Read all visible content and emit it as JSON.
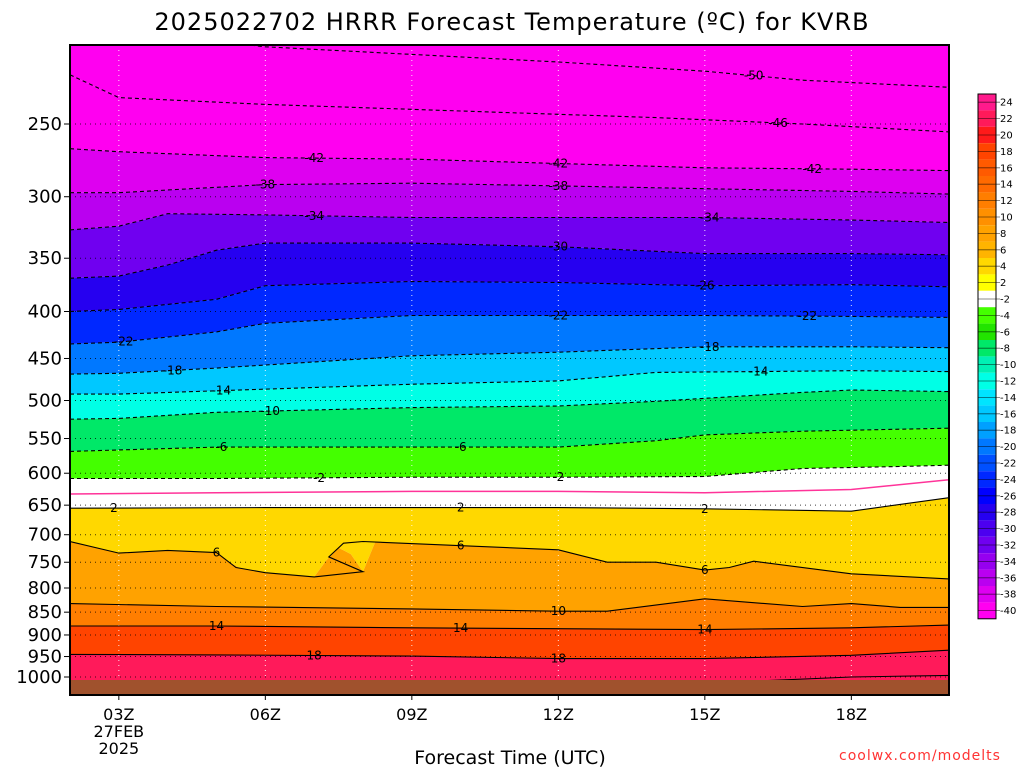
{
  "chart_data": {
    "type": "heatmap",
    "title": "2025022702 HRRR Forecast Temperature (ºC) for KVRB",
    "xlabel": "Forecast Time (UTC)",
    "ylabel": "",
    "credit": "coolwx.com/modelts",
    "x_ticks": [
      {
        "label": "03Z",
        "sub1": "27FEB",
        "sub2": "2025"
      },
      {
        "label": "06Z",
        "sub1": "",
        "sub2": ""
      },
      {
        "label": "09Z",
        "sub1": "",
        "sub2": ""
      },
      {
        "label": "12Z",
        "sub1": "",
        "sub2": ""
      },
      {
        "label": "15Z",
        "sub1": "",
        "sub2": ""
      },
      {
        "label": "18Z",
        "sub1": "",
        "sub2": ""
      }
    ],
    "x_hours": [
      3,
      6,
      9,
      12,
      15,
      18
    ],
    "xlim": [
      2,
      20
    ],
    "y_ticks": [
      250,
      300,
      350,
      400,
      450,
      500,
      550,
      600,
      650,
      700,
      750,
      800,
      850,
      900,
      950,
      1000
    ],
    "ylim": [
      1030,
      200
    ],
    "colorbar": {
      "labels": [
        "24",
        "22",
        "20",
        "18",
        "16",
        "14",
        "12",
        "10",
        "8",
        "6",
        "4",
        "2",
        "-2",
        "-4",
        "-6",
        "-8",
        "-10",
        "-12",
        "-14",
        "-16",
        "-18",
        "-20",
        "-22",
        "-24",
        "-26",
        "-28",
        "-30",
        "-32",
        "-34",
        "-36",
        "-38",
        "-40"
      ],
      "colors": [
        "#ff1a8c",
        "#ff1a5a",
        "#ff1a1a",
        "#ff4400",
        "#ff5a00",
        "#ff6a00",
        "#ff7e00",
        "#ff9000",
        "#ffa200",
        "#ffb400",
        "#ffd800",
        "#ffff00",
        "#ffffff",
        "#44ff00",
        "#22e400",
        "#00e868",
        "#00f0b4",
        "#00ffe6",
        "#00e4ff",
        "#00c8ff",
        "#00a0ff",
        "#0078ff",
        "#0050ff",
        "#0028ff",
        "#0000ff",
        "#2600f0",
        "#4c00f0",
        "#7000f0",
        "#9600f0",
        "#ba00f0",
        "#de00f0",
        "#ff00f0"
      ]
    },
    "contours": [
      {
        "label": "-50",
        "values": [
          [
            2,
            195
          ],
          [
            6,
            206
          ],
          [
            12,
            214
          ],
          [
            15,
            219
          ],
          [
            17,
            224
          ],
          [
            20,
            228
          ]
        ],
        "labels_at": [
          16
        ]
      },
      {
        "label": "-46",
        "values": [
          [
            2,
            221
          ],
          [
            3,
            234
          ],
          [
            6,
            238
          ],
          [
            10,
            242
          ],
          [
            14,
            246
          ],
          [
            17,
            250
          ],
          [
            20,
            255
          ]
        ],
        "labels_at": [
          16.5
        ]
      },
      {
        "label": "-42",
        "values": [
          [
            2,
            266
          ],
          [
            3,
            268
          ],
          [
            6,
            272
          ],
          [
            9,
            273
          ],
          [
            12,
            276
          ],
          [
            15,
            279
          ],
          [
            18,
            280
          ],
          [
            20,
            281
          ]
        ],
        "labels_at": [
          7,
          12,
          17.2
        ]
      },
      {
        "label": "-38",
        "values": [
          [
            2,
            297
          ],
          [
            3,
            297
          ],
          [
            6,
            291
          ],
          [
            9,
            290
          ],
          [
            12,
            292
          ],
          [
            15,
            294
          ],
          [
            18,
            296
          ],
          [
            20,
            298
          ]
        ],
        "labels_at": [
          6,
          12
        ]
      },
      {
        "label": "-34",
        "values": [
          [
            2,
            326
          ],
          [
            3,
            323
          ],
          [
            4,
            313
          ],
          [
            6,
            314
          ],
          [
            9,
            316
          ],
          [
            12,
            316
          ],
          [
            15,
            316
          ],
          [
            18,
            318
          ],
          [
            20,
            320
          ]
        ],
        "labels_at": [
          7,
          15.1
        ]
      },
      {
        "label": "-30",
        "values": [
          [
            2,
            368
          ],
          [
            3,
            366
          ],
          [
            4,
            356
          ],
          [
            5,
            343
          ],
          [
            6,
            337
          ],
          [
            9,
            337
          ],
          [
            12,
            340
          ],
          [
            15,
            346
          ],
          [
            18,
            346
          ],
          [
            20,
            347
          ]
        ],
        "labels_at": [
          12
        ]
      },
      {
        "label": "-26",
        "values": [
          [
            2,
            400
          ],
          [
            3,
            398
          ],
          [
            5,
            388
          ],
          [
            6,
            375
          ],
          [
            9,
            371
          ],
          [
            12,
            372
          ],
          [
            15,
            375
          ],
          [
            18,
            374
          ],
          [
            20,
            376
          ]
        ],
        "labels_at": [
          15
        ]
      },
      {
        "label": "-22",
        "values": [
          [
            2,
            434
          ],
          [
            3,
            432
          ],
          [
            5,
            421
          ],
          [
            6,
            412
          ],
          [
            9,
            404
          ],
          [
            12,
            404
          ],
          [
            15,
            404
          ],
          [
            18,
            405
          ],
          [
            20,
            406
          ]
        ],
        "labels_at": [
          3.1,
          12,
          17.1
        ]
      },
      {
        "label": "-18",
        "values": [
          [
            2,
            468
          ],
          [
            3,
            467
          ],
          [
            5,
            461
          ],
          [
            9,
            447
          ],
          [
            12,
            443
          ],
          [
            15,
            437
          ],
          [
            18,
            437
          ],
          [
            20,
            438
          ]
        ],
        "labels_at": [
          4.1,
          15.1
        ]
      },
      {
        "label": "-14",
        "values": [
          [
            2,
            492
          ],
          [
            3,
            492
          ],
          [
            5,
            488
          ],
          [
            9,
            480
          ],
          [
            12,
            476
          ],
          [
            14,
            466
          ],
          [
            16,
            465
          ],
          [
            18,
            464
          ],
          [
            20,
            465
          ]
        ],
        "labels_at": [
          5.1,
          16.1
        ]
      },
      {
        "label": "-10",
        "values": [
          [
            2,
            524
          ],
          [
            3,
            523
          ],
          [
            5,
            515
          ],
          [
            9,
            509
          ],
          [
            12,
            507
          ],
          [
            14,
            501
          ],
          [
            17,
            490
          ],
          [
            18,
            487
          ],
          [
            20,
            489
          ]
        ],
        "labels_at": [
          6.1
        ]
      },
      {
        "label": "-6",
        "values": [
          [
            2,
            568
          ],
          [
            5,
            562
          ],
          [
            9,
            562
          ],
          [
            12,
            562
          ],
          [
            14,
            553
          ],
          [
            15,
            545
          ],
          [
            17,
            540
          ],
          [
            20,
            536
          ]
        ],
        "labels_at": [
          5.1,
          10
        ]
      },
      {
        "label": "-2",
        "values": [
          [
            2,
            608
          ],
          [
            5,
            608
          ],
          [
            9,
            606
          ],
          [
            12,
            606
          ],
          [
            15,
            605
          ],
          [
            17,
            593
          ],
          [
            19,
            590
          ],
          [
            20,
            588
          ]
        ],
        "labels_at": [
          7.1,
          12
        ]
      },
      {
        "label": "2",
        "values": [
          [
            2,
            655
          ],
          [
            6,
            654
          ],
          [
            9,
            654
          ],
          [
            12,
            654
          ],
          [
            15,
            656
          ],
          [
            18,
            660
          ],
          [
            20,
            638
          ]
        ],
        "labels_at": [
          2.9,
          10,
          15
        ]
      },
      {
        "label": "6",
        "values": [
          [
            2,
            712
          ],
          [
            3,
            733
          ],
          [
            4,
            728
          ],
          [
            5,
            732
          ],
          [
            5.4,
            760
          ],
          [
            6,
            770
          ],
          [
            7,
            778
          ],
          [
            8,
            768
          ],
          [
            7.3,
            740
          ],
          [
            7.6,
            715
          ],
          [
            8,
            712
          ],
          [
            12,
            727
          ],
          [
            13,
            750
          ],
          [
            14,
            750
          ],
          [
            15,
            765
          ],
          [
            15.5,
            760
          ],
          [
            16,
            748
          ],
          [
            18,
            772
          ],
          [
            20,
            782
          ]
        ],
        "labels_at": [
          5,
          10,
          15
        ]
      },
      {
        "label": "10",
        "values": [
          [
            2,
            832
          ],
          [
            5,
            838
          ],
          [
            9,
            843
          ],
          [
            12,
            848
          ],
          [
            13,
            848
          ],
          [
            15,
            822
          ],
          [
            17,
            838
          ],
          [
            18,
            832
          ],
          [
            19,
            840
          ],
          [
            20,
            840
          ]
        ],
        "labels_at": [
          12
        ]
      },
      {
        "label": "14",
        "values": [
          [
            2,
            880
          ],
          [
            5,
            880
          ],
          [
            9,
            884
          ],
          [
            12,
            886
          ],
          [
            15,
            888
          ],
          [
            18,
            884
          ],
          [
            20,
            878
          ]
        ],
        "labels_at": [
          5,
          10,
          15
        ]
      },
      {
        "label": "18",
        "values": [
          [
            2,
            945
          ],
          [
            5,
            946
          ],
          [
            9,
            949
          ],
          [
            12,
            955
          ],
          [
            15,
            955
          ],
          [
            18,
            947
          ],
          [
            20,
            935
          ]
        ],
        "labels_at": [
          7,
          12
        ]
      },
      {
        "label": "22",
        "values": [
          [
            3,
            1017
          ],
          [
            5,
            1016
          ]
        ],
        "labels_at": []
      },
      {
        "label": "22",
        "values": [
          [
            15,
            1016
          ],
          [
            18,
            1000
          ],
          [
            20,
            996
          ]
        ],
        "labels_at": []
      }
    ],
    "freezing_line": {
      "value": 0,
      "color": "#ff3399",
      "values": [
        [
          2,
          632
        ],
        [
          5,
          630
        ],
        [
          9,
          628
        ],
        [
          12,
          628
        ],
        [
          15,
          630
        ],
        [
          18,
          625
        ],
        [
          20,
          610
        ]
      ]
    }
  }
}
